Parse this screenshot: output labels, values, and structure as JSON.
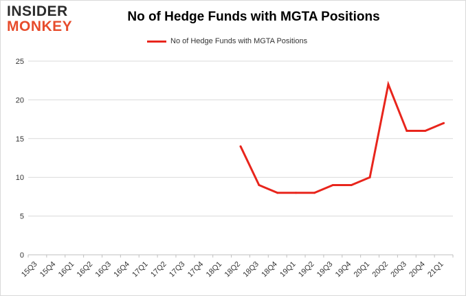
{
  "brand": {
    "line1": "INSIDER",
    "line2": "MONKEY",
    "color_dark": "#2b2b2b",
    "color_accent": "#e74c2c"
  },
  "chart_data": {
    "type": "line",
    "title": "No of Hedge Funds with MGTA Positions",
    "xlabel": "",
    "ylabel": "",
    "categories": [
      "15Q3",
      "15Q4",
      "16Q1",
      "16Q2",
      "16Q3",
      "16Q4",
      "17Q1",
      "17Q2",
      "17Q3",
      "17Q4",
      "18Q1",
      "18Q2",
      "18Q3",
      "18Q4",
      "19Q1",
      "19Q2",
      "19Q3",
      "19Q4",
      "20Q1",
      "20Q2",
      "20Q3",
      "20Q4",
      "21Q1"
    ],
    "series": [
      {
        "name": "No of Hedge Funds with MGTA Positions",
        "color": "#e8251c",
        "values": [
          null,
          null,
          null,
          null,
          null,
          null,
          null,
          null,
          null,
          null,
          null,
          14,
          9,
          8,
          8,
          8,
          9,
          9,
          10,
          22,
          16,
          16,
          17
        ]
      }
    ],
    "ylim": [
      0,
      25
    ],
    "yticks": [
      0,
      5,
      10,
      15,
      20,
      25
    ],
    "grid": true,
    "legend": "top"
  }
}
